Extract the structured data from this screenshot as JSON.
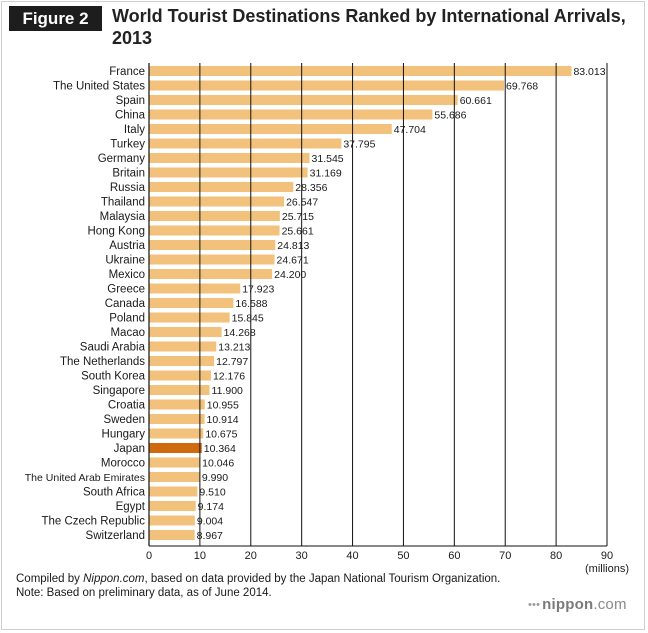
{
  "figure_label": "Figure 2",
  "title": "World Tourist Destinations Ranked by International Arrivals, 2013",
  "footnote": {
    "prefix": "Compiled by ",
    "source_name": "Nippon.com",
    "suffix": ", based on data provided by the Japan National Tourism Organization.",
    "note": "Note: Based on preliminary data, as of June 2014."
  },
  "brand": {
    "dots": "•••",
    "name": "nippon",
    "domain": ".com"
  },
  "colors": {
    "bar": "#f2c27c",
    "highlight": "#d06a10",
    "grid": "#111111"
  },
  "chart_data": {
    "type": "bar",
    "orientation": "horizontal",
    "categories": [
      "France",
      "The United States",
      "Spain",
      "China",
      "Italy",
      "Turkey",
      "Germany",
      "Britain",
      "Russia",
      "Thailand",
      "Malaysia",
      "Hong Kong",
      "Austria",
      "Ukraine",
      "Mexico",
      "Greece",
      "Canada",
      "Poland",
      "Macao",
      "Saudi Arabia",
      "The Netherlands",
      "South Korea",
      "Singapore",
      "Croatia",
      "Sweden",
      "Hungary",
      "Japan",
      "Morocco",
      "The United Arab Emirates",
      "South Africa",
      "Egypt",
      "The Czech Republic",
      "Switzerland"
    ],
    "values": [
      83.013,
      69.768,
      60.661,
      55.686,
      47.704,
      37.795,
      31.545,
      31.169,
      28.356,
      26.547,
      25.715,
      25.661,
      24.813,
      24.671,
      24.2,
      17.923,
      16.588,
      15.845,
      14.268,
      13.213,
      12.797,
      12.176,
      11.9,
      10.955,
      10.914,
      10.675,
      10.364,
      10.046,
      9.99,
      9.51,
      9.174,
      9.004,
      8.967
    ],
    "value_labels": [
      "83.013",
      "69.768",
      "60.661",
      "55.686",
      "47.704",
      "37.795",
      "31.545",
      "31.169",
      "28.356",
      "26.547",
      "25.715",
      "25.661",
      "24.813",
      "24.671",
      "24.200",
      "17.923",
      "16.588",
      "15.845",
      "14.268",
      "13.213",
      "12.797",
      "12.176",
      "11.900",
      "10.955",
      "10.914",
      "10.675",
      "10.364",
      "10.046",
      "9.990",
      "9.510",
      "9.174",
      "9.004",
      "8.967"
    ],
    "highlight": "Japan",
    "xlim": [
      0,
      90
    ],
    "xticks": [
      0,
      10,
      20,
      30,
      40,
      50,
      60,
      70,
      80,
      90
    ],
    "xlabel": "(millions)",
    "grid": true
  }
}
